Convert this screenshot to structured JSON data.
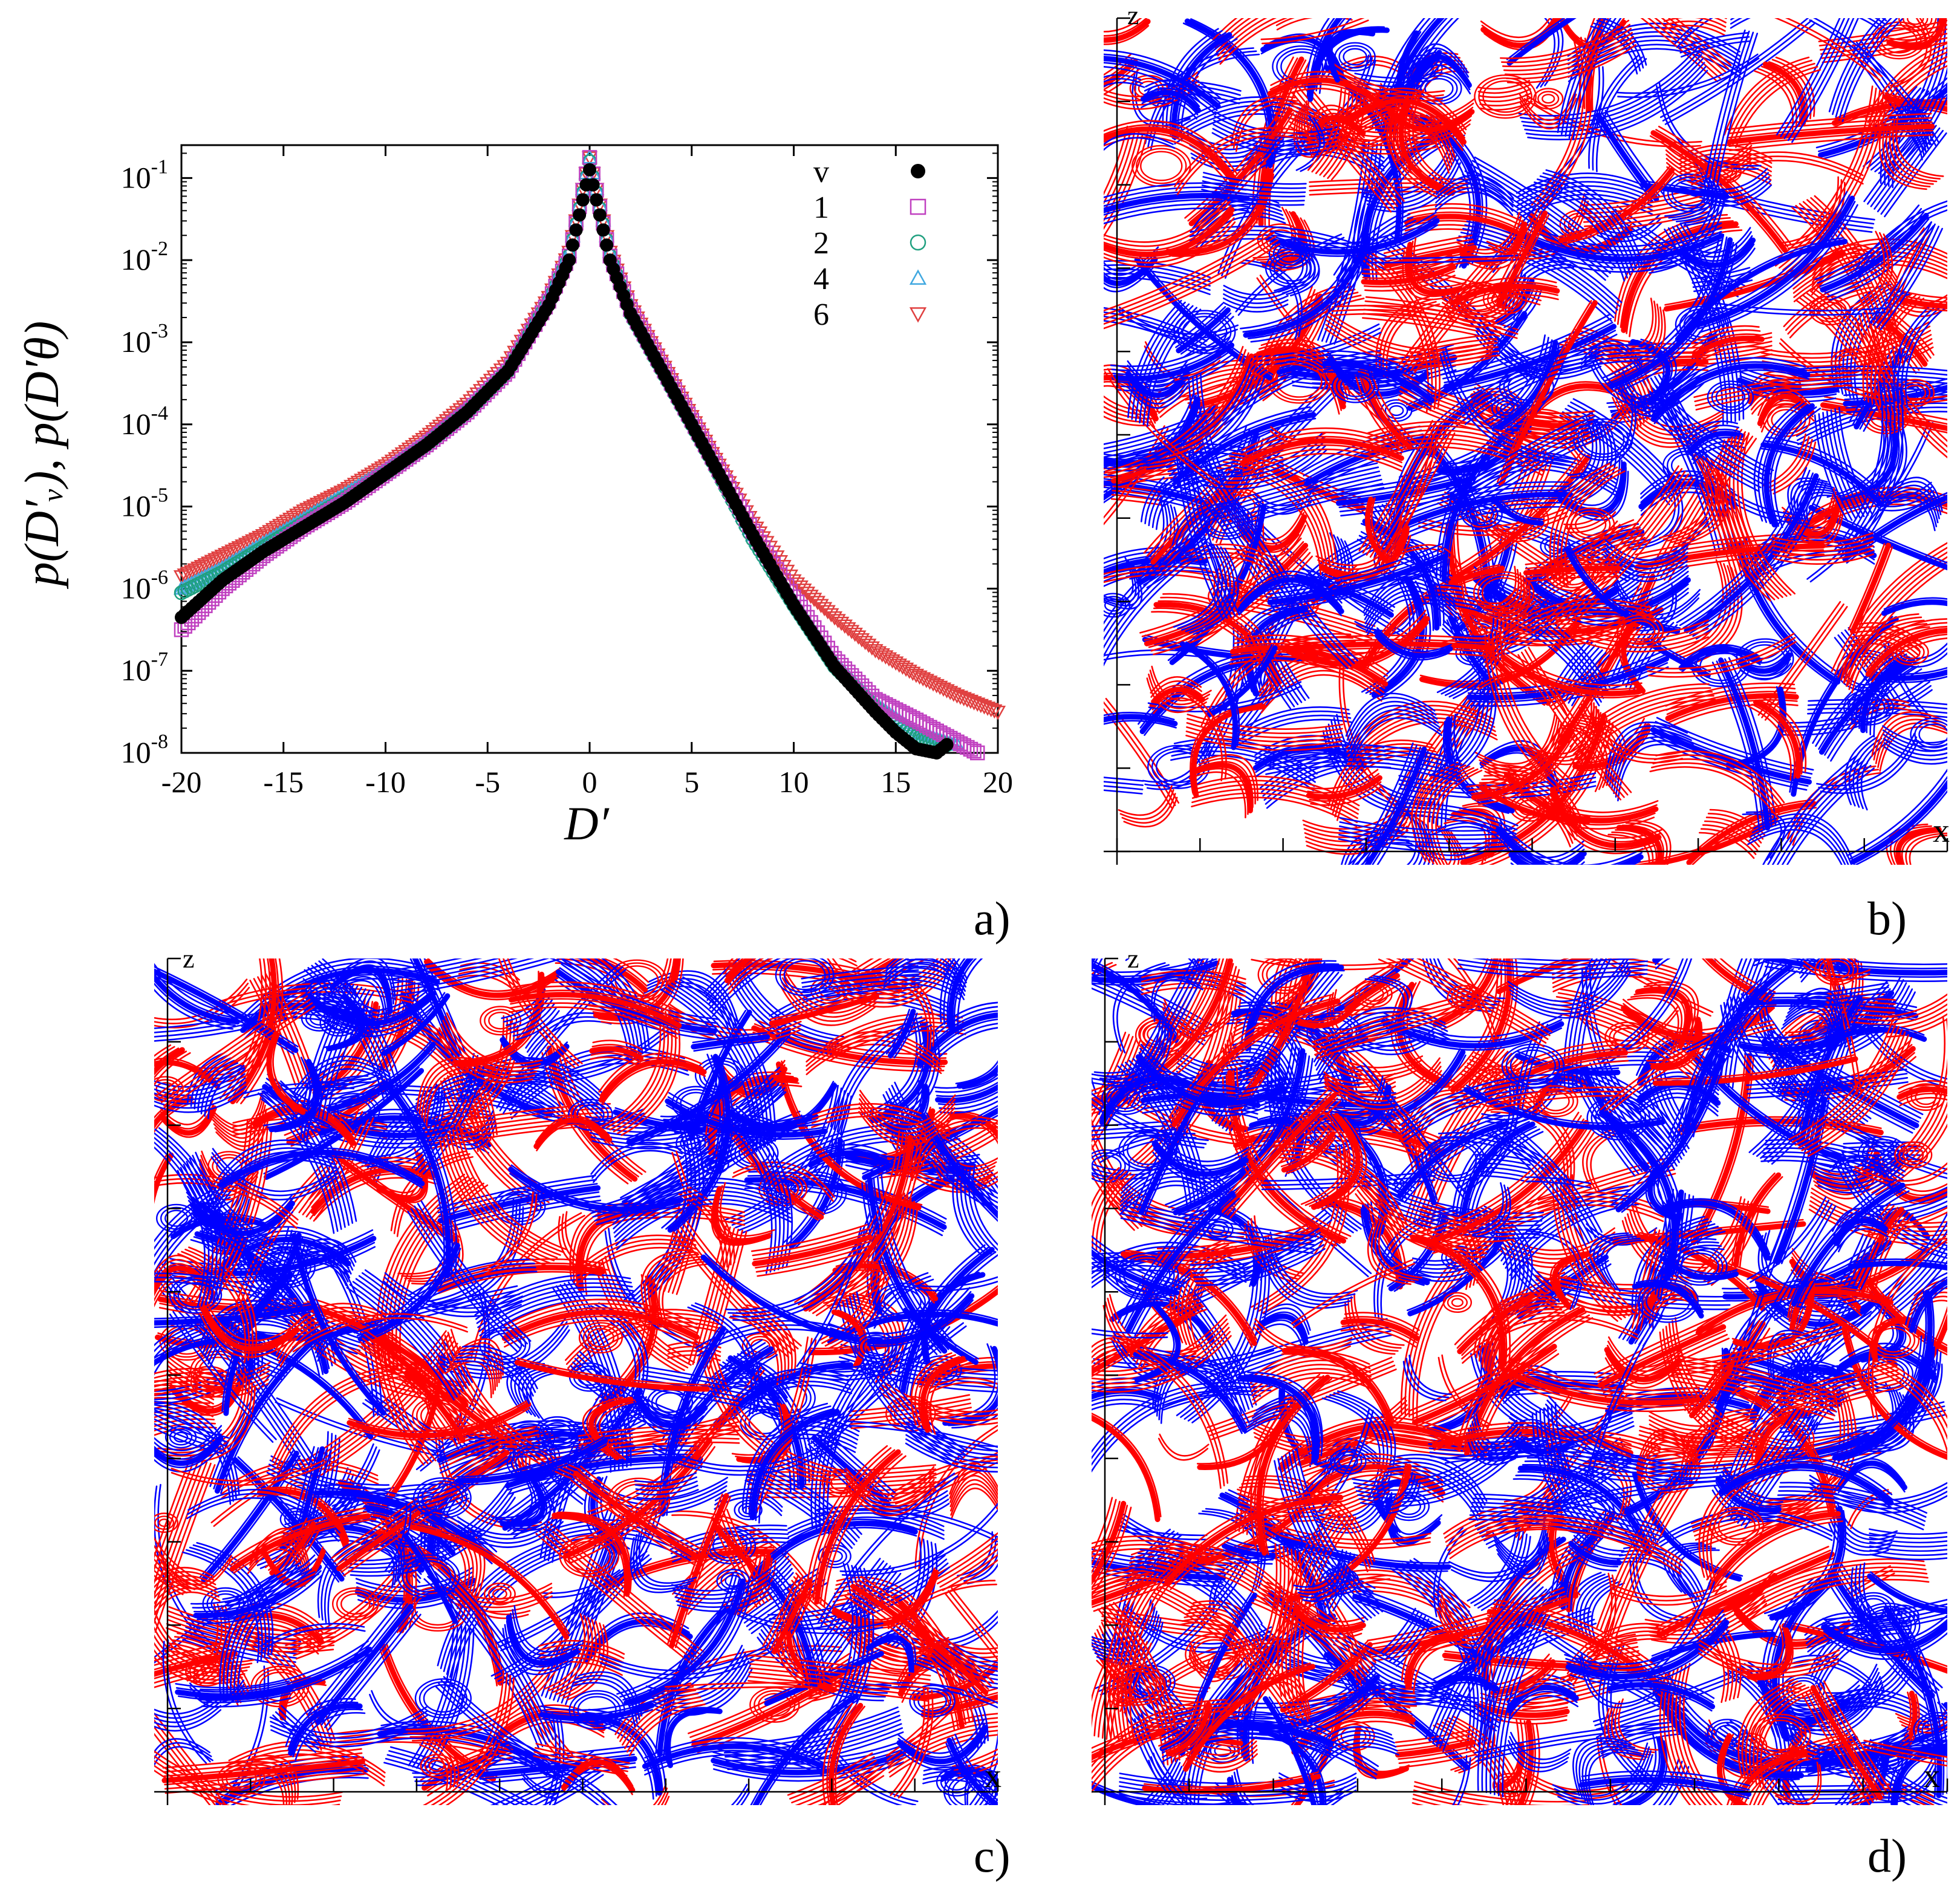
{
  "panels": {
    "a": {
      "label": "a)"
    },
    "b": {
      "label": "b)",
      "x_axis_label": "x",
      "z_axis_label": "z"
    },
    "c": {
      "label": "c)",
      "x_axis_label": "x",
      "z_axis_label": "z"
    },
    "d": {
      "label": "d)",
      "x_axis_label": "x",
      "z_axis_label": "z"
    }
  },
  "contour_colors": {
    "positive": "#ff0000",
    "negative": "#0000ff"
  },
  "chart_data": [
    {
      "id": "a",
      "type": "scatter",
      "title": "",
      "xlabel": "D′",
      "ylabel": "p(D′ᵥ), p(D′θ)",
      "xlim": [
        -20,
        20
      ],
      "ylim_log10": [
        -8,
        -0.6
      ],
      "yscale": "log",
      "grid": false,
      "legend_position": "top-right",
      "x_ticks": [
        -20,
        -15,
        -10,
        -5,
        0,
        5,
        10,
        15,
        20
      ],
      "x_tick_labels": [
        "-20",
        "-15",
        "-10",
        "-5",
        "0",
        "5",
        "10",
        "15",
        "20"
      ],
      "y_tick_exponents": [
        -8,
        -7,
        -6,
        -5,
        -4,
        -3,
        -2,
        -1
      ],
      "y_tick_base": "10",
      "series": [
        {
          "name": "v",
          "marker": "filled-circle",
          "color": "#000000",
          "x": [
            -20,
            -18,
            -16,
            -14,
            -12,
            -10,
            -8,
            -6,
            -4,
            -2,
            -1,
            0,
            1,
            2,
            4,
            6,
            8,
            10,
            12,
            14,
            15,
            16,
            17,
            17.5
          ],
          "log10y": [
            -6.35,
            -5.9,
            -5.55,
            -5.25,
            -4.95,
            -4.6,
            -4.25,
            -3.85,
            -3.35,
            -2.55,
            -2.0,
            -0.9,
            -2.0,
            -2.65,
            -3.55,
            -4.45,
            -5.35,
            -6.2,
            -6.95,
            -7.5,
            -7.75,
            -7.95,
            -8.0,
            -7.9
          ]
        },
        {
          "name": "1",
          "marker": "square-open",
          "color": "#c040c0",
          "x": [
            -20,
            -18,
            -16,
            -14,
            -12,
            -10,
            -8,
            -6,
            -4,
            -2,
            -1,
            0,
            1,
            2,
            4,
            6,
            8,
            10,
            12,
            14,
            16,
            17.5,
            19
          ],
          "log10y": [
            -6.5,
            -6.0,
            -5.6,
            -5.25,
            -4.95,
            -4.6,
            -4.25,
            -3.85,
            -3.35,
            -2.5,
            -1.95,
            -0.75,
            -1.95,
            -2.6,
            -3.5,
            -4.4,
            -5.3,
            -6.1,
            -6.85,
            -7.35,
            -7.6,
            -7.8,
            -8.0
          ]
        },
        {
          "name": "2",
          "marker": "circle-open",
          "color": "#20a080",
          "x": [
            -20,
            -18,
            -16,
            -14,
            -12,
            -10,
            -8,
            -6,
            -4,
            -2,
            -1,
            0,
            1,
            2,
            4,
            6,
            8,
            10,
            12,
            14,
            15,
            16,
            17.5
          ],
          "log10y": [
            -6.05,
            -5.8,
            -5.5,
            -5.2,
            -4.9,
            -4.6,
            -4.25,
            -3.85,
            -3.35,
            -2.5,
            -1.95,
            -0.8,
            -1.95,
            -2.65,
            -3.55,
            -4.45,
            -5.4,
            -6.2,
            -6.95,
            -7.45,
            -7.65,
            -7.8,
            -7.9
          ]
        },
        {
          "name": "4",
          "marker": "triangle-up-open",
          "color": "#40a8e0",
          "x": [
            -20,
            -18,
            -16,
            -14,
            -12,
            -10,
            -8,
            -6,
            -4,
            -2,
            -1,
            0,
            1,
            2,
            4,
            6,
            8,
            10,
            12,
            14,
            16,
            18
          ],
          "log10y": [
            -6.0,
            -5.75,
            -5.45,
            -5.15,
            -4.85,
            -4.55,
            -4.2,
            -3.8,
            -3.3,
            -2.45,
            -1.9,
            -0.75,
            -1.9,
            -2.6,
            -3.5,
            -4.4,
            -5.35,
            -6.15,
            -6.9,
            -7.4,
            -7.75,
            -7.9
          ]
        },
        {
          "name": "6",
          "marker": "triangle-down-open",
          "color": "#e04040",
          "x": [
            -20,
            -18,
            -16,
            -14,
            -12,
            -10,
            -8,
            -6,
            -4,
            -2,
            -1,
            0,
            1,
            2,
            4,
            6,
            8,
            10,
            12,
            14,
            16,
            18,
            20
          ],
          "log10y": [
            -5.85,
            -5.6,
            -5.35,
            -5.05,
            -4.8,
            -4.5,
            -4.15,
            -3.75,
            -3.25,
            -2.45,
            -1.9,
            -0.75,
            -1.9,
            -2.55,
            -3.45,
            -4.35,
            -5.2,
            -5.9,
            -6.35,
            -6.75,
            -7.05,
            -7.3,
            -7.5
          ]
        }
      ]
    }
  ]
}
